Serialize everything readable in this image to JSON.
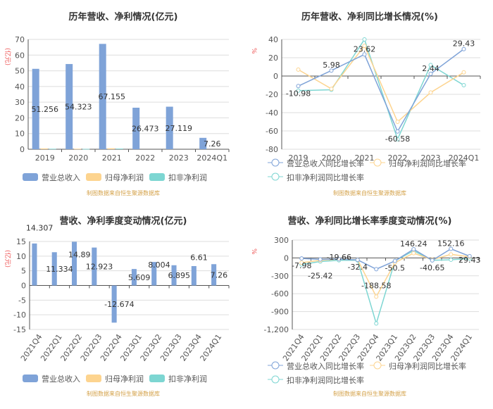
{
  "colors": {
    "revenue": "#7fa3d8",
    "net": "#fdd48f",
    "deducted": "#7dd6d2"
  },
  "source": "制图数据来自恒生聚源数据库",
  "chart_data": [
    {
      "type": "bar",
      "title": "历年营收、净利情况(亿元)",
      "unit": "(亿元)",
      "categories": [
        "2019",
        "2020",
        "2021",
        "2022",
        "2023",
        "2024Q1"
      ],
      "ylim": [
        0,
        70
      ],
      "yticks": [
        0,
        10,
        20,
        30,
        40,
        50,
        60,
        70
      ],
      "series": [
        {
          "name": "营业总收入",
          "values": [
            51.256,
            54.323,
            67.155,
            26.473,
            27.119,
            7.26
          ],
          "labels": [
            "51.256",
            "54.323",
            "67.155",
            "26.473",
            "27.119",
            "7.26"
          ]
        },
        {
          "name": "归母净利润",
          "values": [
            0.5,
            0.3,
            0.6,
            0,
            0,
            0
          ]
        },
        {
          "name": "扣非净利润",
          "values": [
            0.3,
            0.2,
            0.4,
            0,
            0,
            0
          ]
        }
      ]
    },
    {
      "type": "line",
      "title": "历年营收、净利同比增长情况(%)",
      "unit": "%",
      "categories": [
        "2019",
        "2020",
        "2021",
        "2022",
        "2023",
        "2024Q1"
      ],
      "ylim": [
        -80,
        40
      ],
      "yticks": [
        -80,
        -60,
        -40,
        -20,
        0,
        20,
        40
      ],
      "series": [
        {
          "name": "营业总收入同比增长率",
          "values": [
            -10.98,
            5.98,
            23.62,
            -60.58,
            2.44,
            29.43
          ],
          "labels": [
            "-10.98",
            "5.98",
            "23.62",
            "-60.58",
            "2.44",
            "29.43"
          ]
        },
        {
          "name": "归母净利润同比增长率",
          "values": [
            7,
            -14,
            33,
            -50,
            -18,
            4
          ]
        },
        {
          "name": "扣非净利润同比增长率",
          "values": [
            -16,
            -15,
            40,
            -69,
            12,
            -10
          ]
        }
      ]
    },
    {
      "type": "bar",
      "title": "营收、净利季度变动情况(亿元)",
      "unit": "(亿元)",
      "categories": [
        "2021Q4",
        "2022Q1",
        "2022Q2",
        "2022Q3",
        "2022Q4",
        "2023Q1",
        "2023Q2",
        "2023Q3",
        "2023Q4",
        "2024Q1"
      ],
      "ylim": [
        -15,
        15
      ],
      "yticks": [
        -15,
        -10,
        -5,
        0,
        5,
        10,
        15
      ],
      "series": [
        {
          "name": "营业总收入",
          "values": [
            14.307,
            11.334,
            14.89,
            12.923,
            -12.674,
            5.609,
            8.004,
            6.895,
            6.61,
            7.26
          ],
          "labels": [
            "14.307",
            "11.334",
            "14.89",
            "12.923",
            "-12.674",
            "5.609",
            "8.004",
            "6.895",
            "6.61",
            "7.26"
          ]
        },
        {
          "name": "归母净利润",
          "values": [
            0,
            0,
            0,
            0,
            0,
            0,
            0,
            0,
            0,
            0
          ]
        },
        {
          "name": "扣非净利润",
          "values": [
            0,
            0,
            0,
            0,
            0,
            0,
            0,
            0,
            0,
            0
          ]
        }
      ]
    },
    {
      "type": "line",
      "title": "营收、净利同比增长率季度变动情况(%)",
      "unit": "%",
      "categories": [
        "2021Q4",
        "2022Q1",
        "2022Q2",
        "2022Q3",
        "2022Q4",
        "2023Q1",
        "2023Q2",
        "2023Q3",
        "2023Q4",
        "2024Q1"
      ],
      "ylim": [
        -1200,
        300
      ],
      "yticks": [
        -1200,
        -900,
        -600,
        -300,
        0,
        300
      ],
      "ytickLabels": [
        "-1,200",
        "-900",
        "-600",
        "-300",
        "0",
        "300"
      ],
      "series": [
        {
          "name": "营业总收入同比增长率",
          "values": [
            -7.98,
            -25.42,
            -19.66,
            -32.4,
            -188.58,
            -50.5,
            146.24,
            -40.65,
            152.16,
            29.43
          ],
          "labels": [
            "-7.98",
            "-25.42",
            "-19.66",
            "-32.4",
            "-188.58",
            "-50.5",
            "146.24",
            "-40.65",
            "152.16",
            "29.43"
          ]
        },
        {
          "name": "归母净利润同比增长率",
          "values": [
            -80,
            -40,
            -20,
            -30,
            -650,
            -80,
            80,
            -30,
            60,
            20
          ]
        },
        {
          "name": "扣非净利润同比增长率",
          "values": [
            -110,
            -60,
            -40,
            -40,
            -1100,
            -50,
            120,
            -40,
            -30,
            -10
          ]
        }
      ]
    }
  ]
}
